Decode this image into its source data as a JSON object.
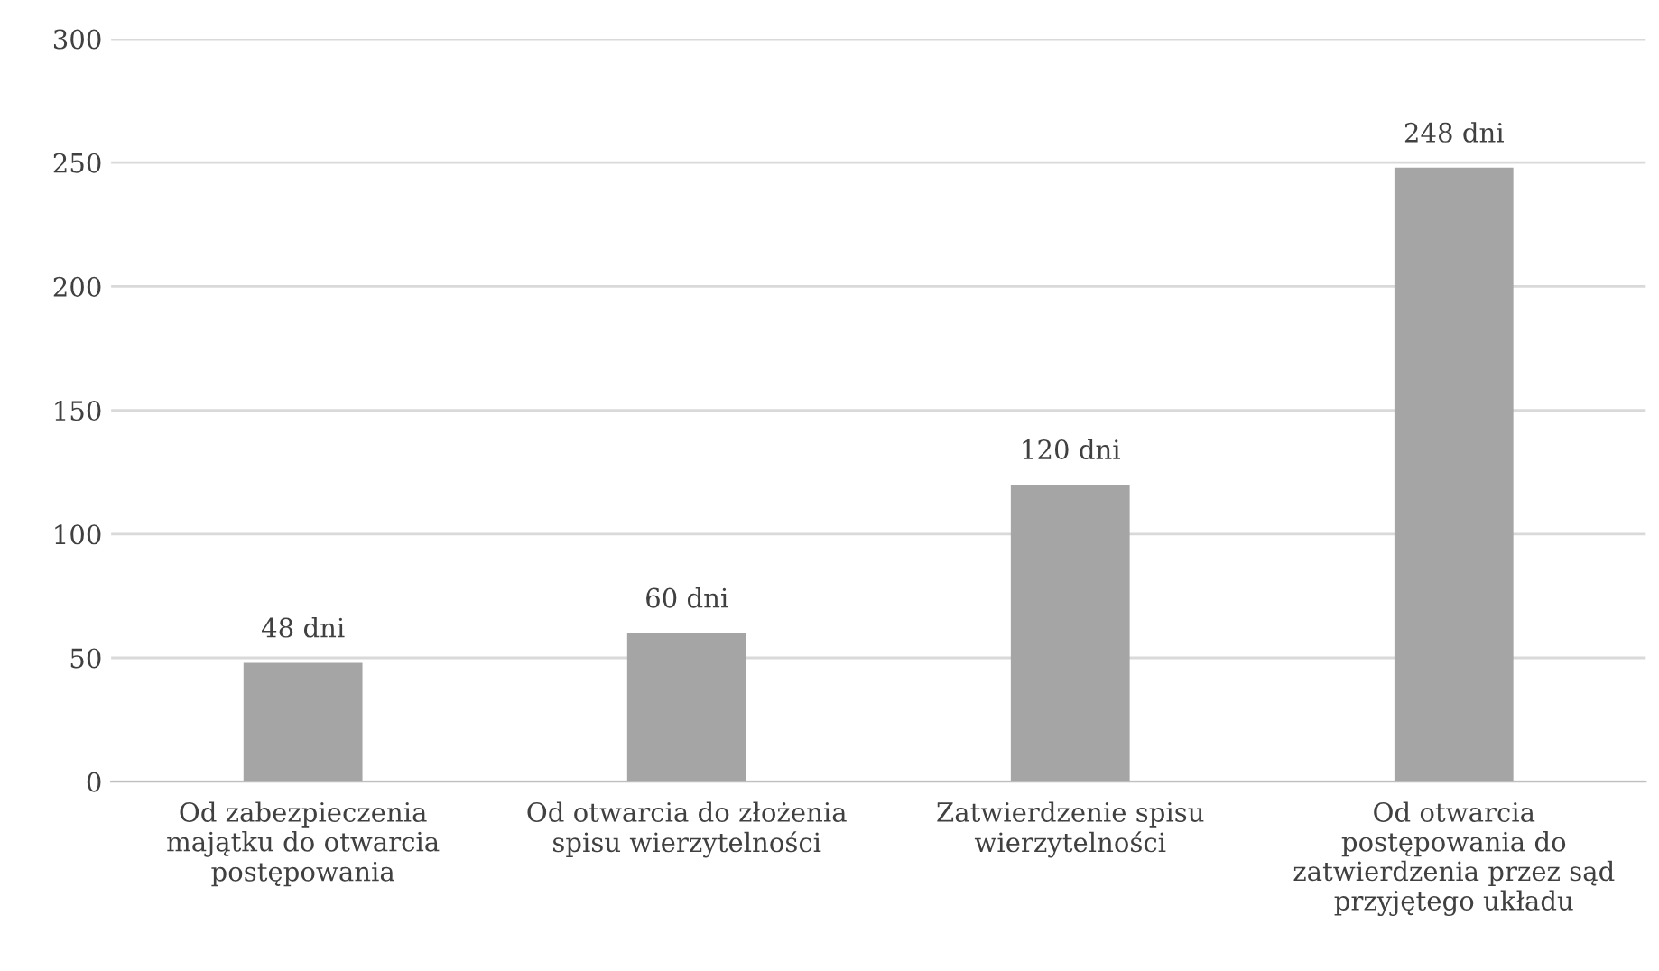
{
  "chart_data": {
    "type": "bar",
    "categories": [
      "Od zabezpieczenia\nmajątku do otwarcia\npostępowania",
      "Od otwarcia do złożenia\nspisu wierzytelności",
      "Zatwierdzenie spisu\nwierzytelności",
      "Od otwarcia\npostępowania do\nzatwierdzenia przez sąd\nprzyjętego układu"
    ],
    "values": [
      48,
      60,
      120,
      248
    ],
    "value_labels": [
      "48 dni",
      "60 dni",
      "120 dni",
      "248 dni"
    ],
    "color": "#a5a5a5",
    "ylim": [
      0,
      300
    ],
    "yticks": [
      0,
      50,
      100,
      150,
      200,
      250,
      300
    ],
    "grid": "y",
    "legend": false
  }
}
